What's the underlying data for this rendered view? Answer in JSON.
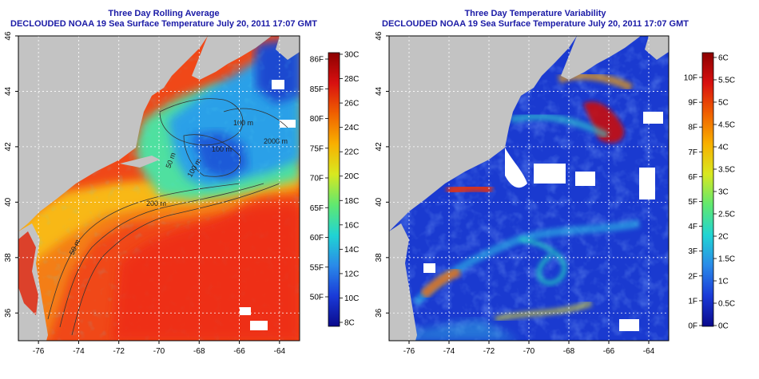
{
  "panels": [
    {
      "title_line1": "Three Day Rolling Average",
      "title_line2": "DECLOUDED NOAA 19 Sea Surface Temperature July 20, 2011 17:07 GMT",
      "colorbar": {
        "left_labels": [
          "86F",
          "85F",
          "80F",
          "75F",
          "70F",
          "65F",
          "60F",
          "55F",
          "50F"
        ],
        "right_labels": [
          "30C",
          "28C",
          "26C",
          "24C",
          "22C",
          "20C",
          "18C",
          "16C",
          "14C",
          "12C",
          "10C",
          "8C"
        ],
        "stops": [
          "#0a0a8c",
          "#1a3ad8",
          "#2a8ae8",
          "#20d4d4",
          "#60e870",
          "#d8e820",
          "#f8b000",
          "#f06000",
          "#d81010",
          "#8c0000"
        ]
      },
      "contour_labels": [
        "100 m",
        "100 m",
        "2000 m",
        "100 m",
        "50 m",
        "200 m",
        "50 m"
      ]
    },
    {
      "title_line1": "Three Day Temperature Variability",
      "title_line2": "DECLOUDED NOAA 19 Sea Surface Temperature July 20, 2011 17:07 GMT",
      "colorbar": {
        "left_labels": [
          "10F",
          "9F",
          "8F",
          "7F",
          "6F",
          "5F",
          "4F",
          "3F",
          "2F",
          "1F",
          "0F"
        ],
        "right_labels": [
          "6C",
          "5.5C",
          "5C",
          "4.5C",
          "4C",
          "3.5C",
          "3C",
          "2.5C",
          "2C",
          "1.5C",
          "1C",
          "0.5C",
          "0C"
        ],
        "stops": [
          "#0a0a8c",
          "#1a3ad8",
          "#2a8ae8",
          "#20d4d4",
          "#60e870",
          "#d8e820",
          "#f8b000",
          "#f06000",
          "#d81010",
          "#8c0000"
        ]
      }
    }
  ],
  "axes": {
    "lon_labels": [
      "-76",
      "-74",
      "-72",
      "-70",
      "-68",
      "-66",
      "-64"
    ],
    "lat_labels": [
      "36",
      "38",
      "40",
      "42",
      "44",
      "46"
    ]
  },
  "colors": {
    "land": "#c3c3c3",
    "title": "#1a1aa6"
  }
}
